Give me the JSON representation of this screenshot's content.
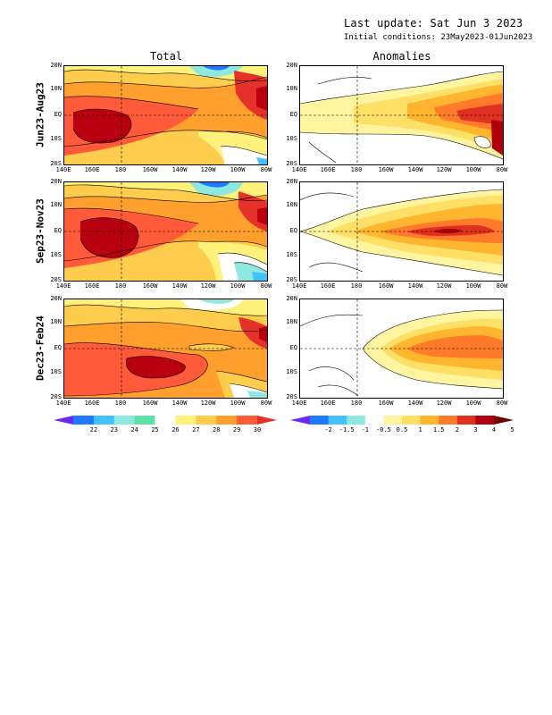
{
  "header": {
    "last_update": "Last update: Sat Jun 3 2023",
    "initial_conditions": "Initial conditions: 23May2023-01Jun2023"
  },
  "columns": {
    "total": "Total",
    "anomalies": "Anomalies"
  },
  "rows": [
    {
      "label": "Jun23-Aug23"
    },
    {
      "label": "Sep23-Nov23"
    },
    {
      "label": "Dec23-Feb24"
    }
  ],
  "axes": {
    "lat_ticks": [
      "20N",
      "10N",
      "EQ",
      "10S",
      "20S"
    ],
    "lon_ticks": [
      "140E",
      "160E",
      "180",
      "160W",
      "140W",
      "120W",
      "100W",
      "80W"
    ]
  },
  "colorbar_total": {
    "labels": [
      "22",
      "23",
      "24",
      "25",
      "26",
      "27",
      "28",
      "29",
      "30"
    ],
    "colors": [
      "#6a2cf0",
      "#1f78ff",
      "#44c2ff",
      "#8fe8e0",
      "#5fe0a8",
      "#ffffff",
      "#fff27a",
      "#ffcd4d",
      "#ff9f2e",
      "#ff5a3a",
      "#e5312a"
    ]
  },
  "colorbar_anom": {
    "labels": [
      "-2",
      "-1.5",
      "-1",
      "-0.5",
      "0.5",
      "1",
      "1.5",
      "2",
      "3",
      "4",
      "5"
    ],
    "colors": [
      "#6a2cf0",
      "#1f78ff",
      "#44c2ff",
      "#8fe8e0",
      "#ffffff",
      "#fff5a0",
      "#ffe066",
      "#ffb52e",
      "#ff7a2a",
      "#e03020",
      "#b00010",
      "#6e0000"
    ]
  }
}
